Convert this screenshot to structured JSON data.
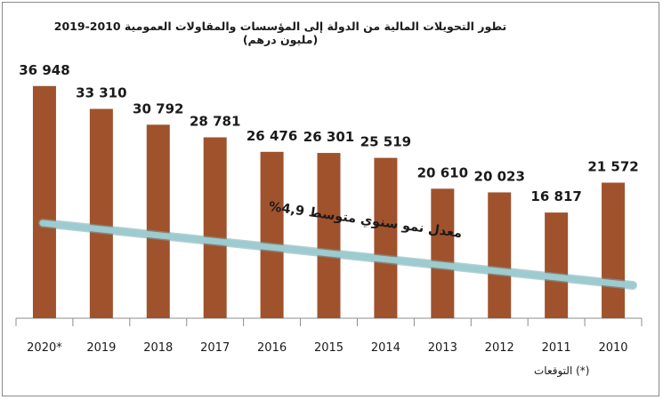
{
  "chart_data": {
    "type": "bar",
    "title": "تطور التحويلات المالية من الدولة إلى المؤسسات والمقاولات العمومية 2010-2019 (مليون درهم)",
    "categories": [
      "2020*",
      "2019",
      "2018",
      "2017",
      "2016",
      "2015",
      "2014",
      "2013",
      "2012",
      "2011",
      "2010"
    ],
    "values": [
      36948,
      33310,
      30792,
      28781,
      26476,
      26301,
      25519,
      20610,
      20023,
      16817,
      21572
    ],
    "value_labels": [
      "36 948",
      "33 310",
      "30 792",
      "28 781",
      "26 476",
      "26 301",
      "25 519",
      "20 610",
      "20 023",
      "16 817",
      "21 572"
    ],
    "xlabel": "",
    "ylabel": "",
    "bar_color": "#a0522d",
    "trend_color": "#9ccbd0",
    "trend_label": "معدل نمو سنوي متوسط 4,9%",
    "footnote": "(*) التوقعات",
    "grid": false,
    "y_axis_visible": false
  }
}
